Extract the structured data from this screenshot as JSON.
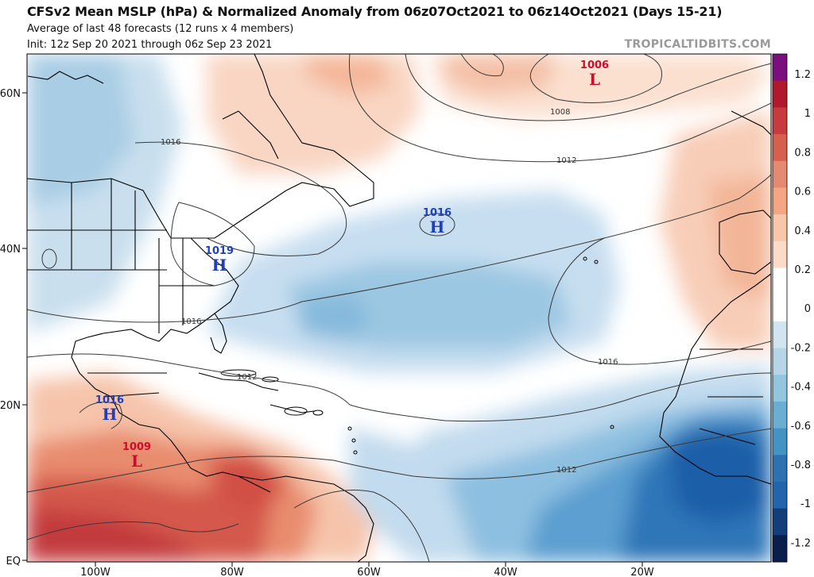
{
  "header": {
    "title": "CFSv2 Mean MSLP (hPa) & Normalized Anomaly from 06z07Oct2021 to 06z14Oct2021 (Days 15-21)",
    "subtitle": "Average of last 48 forecasts (12 runs x 4 members)",
    "init": "Init: 12z Sep 20 2021 through 06z Sep 23 2021",
    "brand": "TROPICALTIDBITS.COM"
  },
  "axes": {
    "lat_labels": [
      "60N",
      "40N",
      "20N",
      "EQ"
    ],
    "lon_labels": [
      "100W",
      "80W",
      "60W",
      "40W",
      "20W"
    ]
  },
  "colorbar": {
    "labels": [
      "1.2",
      "1",
      "0.8",
      "0.6",
      "0.4",
      "0.2",
      "0",
      "-0.2",
      "-0.4",
      "-0.6",
      "-0.8",
      "-1",
      "-1.2"
    ],
    "colors_top_to_bottom": [
      "#7b0f7e",
      "#b2182b",
      "#c73a3e",
      "#d6604d",
      "#e48a71",
      "#f4a582",
      "#f8c6ab",
      "#fddbc7",
      "#ffffff",
      "#ffffff",
      "#d1e5f0",
      "#b6d6e8",
      "#92c5de",
      "#6aaed3",
      "#4393c3",
      "#2c72b2",
      "#2166ac",
      "#123f7a",
      "#0a1f4c"
    ]
  },
  "pressure_centers": [
    {
      "value": "1006",
      "letter": "L",
      "type": "low"
    },
    {
      "value": "1016",
      "letter": "H",
      "type": "high"
    },
    {
      "value": "1019",
      "letter": "H",
      "type": "high"
    },
    {
      "value": "1016",
      "letter": "H",
      "type": "high"
    },
    {
      "value": "1009",
      "letter": "L",
      "type": "low"
    }
  ],
  "isobar_labels": [
    "1008",
    "1012",
    "1016",
    "1016",
    "1016",
    "1012",
    "1012",
    "1016"
  ],
  "colors": {
    "high": "#1f3fbf",
    "low": "#c8102e",
    "isobar": "#3a3a3a",
    "coast": "#000000"
  }
}
